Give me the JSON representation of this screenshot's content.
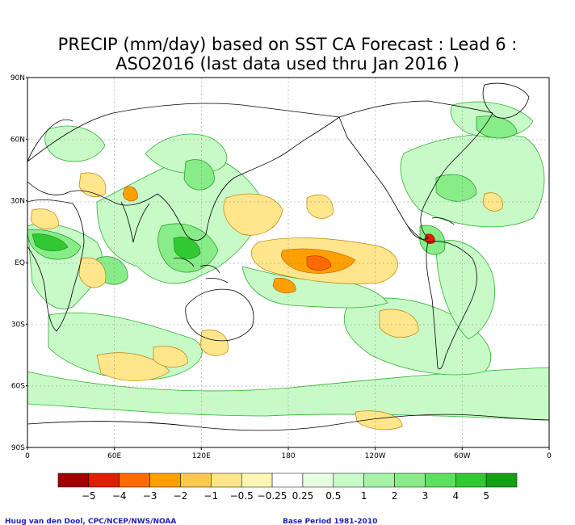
{
  "title": {
    "line1": "PRECIP (mm/day) based on SST CA Forecast : Lead 6 :",
    "line2": "ASO2016 (last data used thru Jan 2016 )"
  },
  "axes": {
    "lat_labels": [
      "90N",
      "60N",
      "30N",
      "EQ",
      "30S",
      "60S",
      "90S"
    ],
    "lon_labels": [
      "0",
      "60E",
      "120E",
      "180",
      "120W",
      "60W",
      "0"
    ]
  },
  "legend": {
    "colors": [
      "#a00000",
      "#e01e00",
      "#ff6a00",
      "#ffa000",
      "#ffc850",
      "#ffe68c",
      "#fff6b4",
      "#ffffff",
      "#e6ffe0",
      "#c8fac8",
      "#a6f2a6",
      "#88ec88",
      "#5ee05e",
      "#32c832",
      "#14a014"
    ],
    "labels": [
      "−5",
      "−4",
      "−3",
      "−2",
      "−1",
      "−0.5",
      "−0.25",
      "0.25",
      "0.5",
      "1",
      "2",
      "3",
      "4",
      "5"
    ]
  },
  "credits": {
    "left": "Huug van den Dool, CPC/NCEP/NWS/NOAA",
    "right": "Base Period 1981-2010"
  },
  "colors": {
    "wet_light": "#c8fac8",
    "wet_mid": "#88ec88",
    "wet_strong": "#32c832",
    "dry_light": "#ffe68c",
    "dry_mid": "#ffa000",
    "dry_strong": "#e01e00"
  }
}
